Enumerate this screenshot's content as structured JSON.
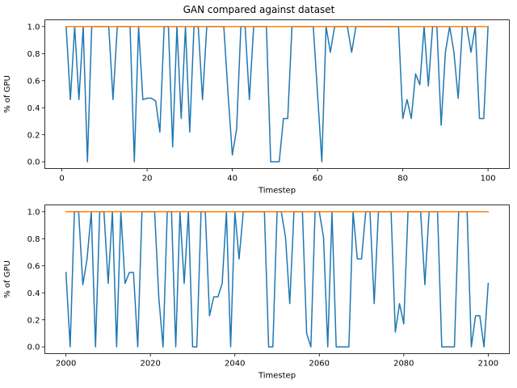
{
  "figure": {
    "title": "GAN compared against dataset"
  },
  "chart_data": [
    {
      "type": "line",
      "xlabel": "Timestep",
      "ylabel": "% of GPU",
      "xlim": [
        -4.0,
        105.0
      ],
      "ylim": [
        -0.05,
        1.05
      ],
      "xticks": [
        0,
        20,
        40,
        60,
        80,
        100
      ],
      "yticks": [
        0.0,
        0.2,
        0.4,
        0.6,
        0.8,
        1.0
      ],
      "xtick_labels": [
        "0",
        "20",
        "40",
        "60",
        "80",
        "100"
      ],
      "ytick_labels": [
        "0.0",
        "0.2",
        "0.4",
        "0.6",
        "0.8",
        "1.0"
      ],
      "grid": false,
      "legend": "none",
      "series": [
        {
          "color": "#1f77b4",
          "x": [
            1,
            2,
            3,
            4,
            5,
            6,
            7,
            8,
            9,
            10,
            11,
            12,
            13,
            14,
            15,
            16,
            17,
            18,
            19,
            20,
            21,
            22,
            23,
            24,
            25,
            26,
            27,
            28,
            29,
            30,
            31,
            32,
            33,
            34,
            35,
            36,
            37,
            38,
            39,
            40,
            41,
            42,
            43,
            44,
            45,
            46,
            47,
            48,
            49,
            50,
            51,
            52,
            53,
            54,
            55,
            56,
            57,
            58,
            59,
            60,
            61,
            62,
            63,
            64,
            65,
            66,
            67,
            68,
            69,
            70,
            71,
            72,
            73,
            74,
            75,
            76,
            77,
            78,
            79,
            80,
            81,
            82,
            83,
            84,
            85,
            86,
            87,
            88,
            89,
            90,
            91,
            92,
            93,
            94,
            95,
            96,
            97,
            98,
            99,
            100
          ],
          "y": [
            1.0,
            0.46,
            1.0,
            0.46,
            1.0,
            0.0,
            1.0,
            1.0,
            1.0,
            1.0,
            1.0,
            0.46,
            1.0,
            1.0,
            1.0,
            1.0,
            0.0,
            1.0,
            0.46,
            0.47,
            0.47,
            0.45,
            0.22,
            1.0,
            1.0,
            0.11,
            1.0,
            0.32,
            1.0,
            0.22,
            1.0,
            1.0,
            0.46,
            1.0,
            1.0,
            1.0,
            1.0,
            1.0,
            0.5,
            0.05,
            0.24,
            1.0,
            1.0,
            0.46,
            1.0,
            1.0,
            1.0,
            1.0,
            0.0,
            0.0,
            0.0,
            0.32,
            0.32,
            1.0,
            1.0,
            1.0,
            1.0,
            1.0,
            1.0,
            0.5,
            0.0,
            1.0,
            0.81,
            1.0,
            1.0,
            1.0,
            1.0,
            0.81,
            1.0,
            1.0,
            1.0,
            1.0,
            1.0,
            1.0,
            1.0,
            1.0,
            1.0,
            1.0,
            1.0,
            0.32,
            0.46,
            0.32,
            0.65,
            0.57,
            1.0,
            0.56,
            1.0,
            1.0,
            0.27,
            0.81,
            1.0,
            0.81,
            0.47,
            1.0,
            1.0,
            0.81,
            1.0,
            0.32,
            0.32,
            1.0
          ]
        },
        {
          "color": "#ff7f0e",
          "x": [
            1,
            100
          ],
          "y": [
            1.0,
            1.0
          ]
        }
      ]
    },
    {
      "type": "line",
      "xlabel": "Timestep",
      "ylabel": "% of GPU",
      "xlim": [
        1995.0,
        2105.0
      ],
      "ylim": [
        -0.05,
        1.05
      ],
      "xticks": [
        2000,
        2020,
        2040,
        2060,
        2080,
        2100
      ],
      "yticks": [
        0.0,
        0.2,
        0.4,
        0.6,
        0.8,
        1.0
      ],
      "xtick_labels": [
        "2000",
        "2020",
        "2040",
        "2060",
        "2080",
        "2100"
      ],
      "ytick_labels": [
        "0.0",
        "0.2",
        "0.4",
        "0.6",
        "0.8",
        "1.0"
      ],
      "grid": false,
      "legend": "none",
      "series": [
        {
          "color": "#1f77b4",
          "x": [
            2000,
            2001,
            2002,
            2003,
            2004,
            2005,
            2006,
            2007,
            2008,
            2009,
            2010,
            2011,
            2012,
            2013,
            2014,
            2015,
            2016,
            2017,
            2018,
            2019,
            2020,
            2021,
            2022,
            2023,
            2024,
            2025,
            2026,
            2027,
            2028,
            2029,
            2030,
            2031,
            2032,
            2033,
            2034,
            2035,
            2036,
            2037,
            2038,
            2039,
            2040,
            2041,
            2042,
            2043,
            2044,
            2045,
            2046,
            2047,
            2048,
            2049,
            2050,
            2051,
            2052,
            2053,
            2054,
            2055,
            2056,
            2057,
            2058,
            2059,
            2060,
            2061,
            2062,
            2063,
            2064,
            2065,
            2066,
            2067,
            2068,
            2069,
            2070,
            2071,
            2072,
            2073,
            2074,
            2075,
            2076,
            2077,
            2078,
            2079,
            2080,
            2081,
            2082,
            2083,
            2084,
            2085,
            2086,
            2087,
            2088,
            2089,
            2090,
            2091,
            2092,
            2093,
            2094,
            2095,
            2096,
            2097,
            2098,
            2099,
            2100
          ],
          "y": [
            0.55,
            0.0,
            1.0,
            1.0,
            0.46,
            0.65,
            1.0,
            0.0,
            1.0,
            1.0,
            0.47,
            1.0,
            0.0,
            1.0,
            0.47,
            0.55,
            0.55,
            0.0,
            1.0,
            1.0,
            1.0,
            1.0,
            0.36,
            0.0,
            1.0,
            1.0,
            0.0,
            1.0,
            0.47,
            1.0,
            0.0,
            0.0,
            1.0,
            1.0,
            0.23,
            0.37,
            0.37,
            0.47,
            1.0,
            0.0,
            1.0,
            0.65,
            1.0,
            1.0,
            1.0,
            1.0,
            1.0,
            1.0,
            0.0,
            0.0,
            1.0,
            1.0,
            0.81,
            0.32,
            1.0,
            1.0,
            1.0,
            0.1,
            0.0,
            1.0,
            1.0,
            0.81,
            0.0,
            1.0,
            0.0,
            0.0,
            0.0,
            0.0,
            1.0,
            0.65,
            0.65,
            1.0,
            1.0,
            0.32,
            1.0,
            1.0,
            1.0,
            1.0,
            0.11,
            0.32,
            0.17,
            1.0,
            1.0,
            1.0,
            1.0,
            0.46,
            1.0,
            1.0,
            1.0,
            0.0,
            0.0,
            0.0,
            0.0,
            1.0,
            1.0,
            1.0,
            0.0,
            0.23,
            0.23,
            0.0,
            0.47
          ]
        },
        {
          "color": "#ff7f0e",
          "x": [
            2000,
            2100
          ],
          "y": [
            1.0,
            1.0
          ]
        }
      ]
    }
  ]
}
